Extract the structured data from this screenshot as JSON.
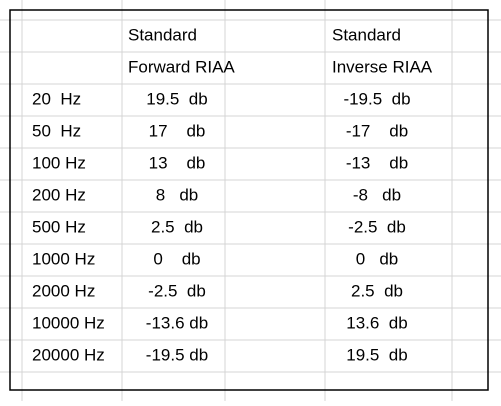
{
  "table": {
    "header": [
      [
        "Standard",
        "Standard"
      ],
      [
        "Forward RIAA",
        "Inverse RIAA"
      ]
    ],
    "rows": [
      [
        "20  Hz",
        "19.5  db",
        "-19.5  db"
      ],
      [
        "50  Hz",
        "17    db",
        "-17    db"
      ],
      [
        "100 Hz",
        "13    db",
        "-13    db"
      ],
      [
        "200 Hz",
        "8   db",
        "-8   db"
      ],
      [
        "500 Hz",
        "2.5  db",
        "-2.5  db"
      ],
      [
        "1000 Hz",
        "0    db",
        "0   db"
      ],
      [
        "2000 Hz",
        "-2.5  db",
        "2.5  db"
      ],
      [
        "10000 Hz",
        "-13.6 db",
        "13.6  db"
      ],
      [
        "20000 Hz",
        "-19.5 db",
        "19.5  db"
      ]
    ]
  }
}
